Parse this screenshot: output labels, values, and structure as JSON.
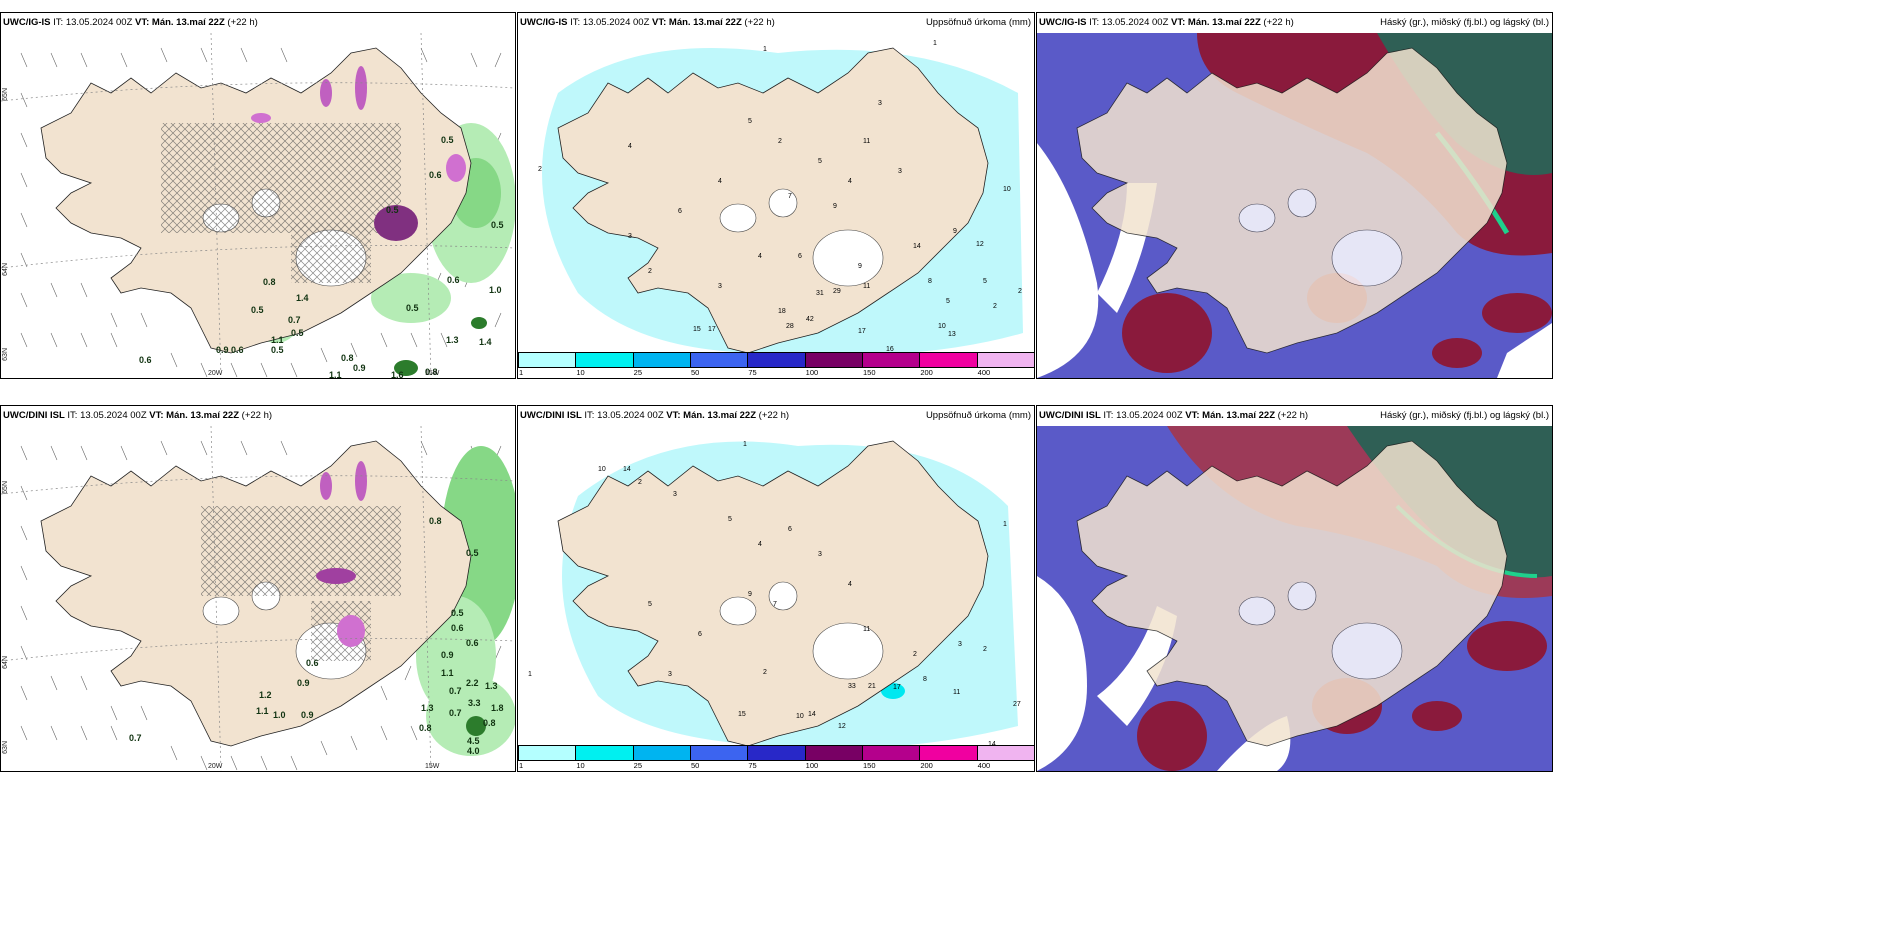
{
  "rows": [
    {
      "model": "UWC/IG-IS",
      "it_label": "IT:",
      "it_value": "13.05.2024 00Z",
      "vt_label": "VT:",
      "vt_value": "Mán. 13.maí 22Z",
      "lead": "(+22 h)"
    },
    {
      "model": "UWC/DINI ISL",
      "it_label": "IT:",
      "it_value": "13.05.2024 00Z",
      "vt_label": "VT:",
      "vt_value": "Mán. 13.maí 22Z",
      "lead": "(+22 h)"
    }
  ],
  "panel_titles": {
    "precip": "Uppsöfnuð úrkoma (mm)",
    "clouds": "Háský (gr.), miðský (fj.bl.) og lágský (bl.)"
  },
  "axis_labels": {
    "lat65": "65N",
    "lat64": "64N",
    "lat63": "63N",
    "lon20": "20W",
    "lon15": "15W"
  },
  "colorbar": {
    "ticks": [
      "1",
      "10",
      "25",
      "50",
      "75",
      "100",
      "150",
      "200",
      "400"
    ],
    "colors": [
      "#b4ffff",
      "#00f0f0",
      "#00b4f0",
      "#3c64f0",
      "#2828c8",
      "#780064",
      "#b4008c",
      "#f000a0",
      "#f0b4f0"
    ]
  },
  "precip_labels_top": [
    "1",
    "1",
    "3",
    "2",
    "5",
    "3",
    "4",
    "2",
    "6",
    "4",
    "11",
    "5",
    "4",
    "7",
    "9",
    "3",
    "2",
    "3",
    "4",
    "6",
    "9",
    "11",
    "18",
    "31",
    "29",
    "42",
    "28",
    "17",
    "15",
    "17",
    "10",
    "16",
    "13",
    "10",
    "5",
    "14",
    "9",
    "12",
    "8",
    "5",
    "2",
    "2"
  ],
  "precip_labels_bottom": [
    "1",
    "1",
    "2",
    "3",
    "14",
    "10",
    "5",
    "6",
    "4",
    "3",
    "7",
    "5",
    "9",
    "4",
    "11",
    "2",
    "3",
    "6",
    "3",
    "2",
    "8",
    "33",
    "21",
    "17",
    "11",
    "10",
    "14",
    "15",
    "12",
    "27",
    "14",
    "2",
    "1"
  ],
  "rate_labels_top": [
    "0.5",
    "0.6",
    "0.5",
    "0.5",
    "0.8",
    "0.5",
    "0.7",
    "0.5",
    "1.4",
    "0.6",
    "1.0",
    "0.5",
    "1.3",
    "1.4",
    "0.9",
    "0.6",
    "0.6",
    "1.1",
    "0.5",
    "0.8",
    "0.9",
    "1.1",
    "1.6",
    "0.8"
  ],
  "rate_labels_bottom": [
    "0.8",
    "0.5",
    "0.5",
    "0.6",
    "0.6",
    "0.6",
    "0.9",
    "1.1",
    "0.9",
    "1.2",
    "1.1",
    "1.0",
    "0.7",
    "1.3",
    "0.8",
    "0.7",
    "2.2",
    "1.3",
    "3.3",
    "1.8",
    "4.5",
    "4.0",
    "0.8",
    "0.9",
    "0.7"
  ],
  "colors": {
    "land": "#f2e3d0",
    "sea": "#ffffff",
    "high_cloud": "#2f5f55",
    "mid_cloud": "#8a1a3c",
    "low_cloud": "#5050c0",
    "cyan_light": "#bff8fb",
    "rain_green": "#86d886"
  }
}
